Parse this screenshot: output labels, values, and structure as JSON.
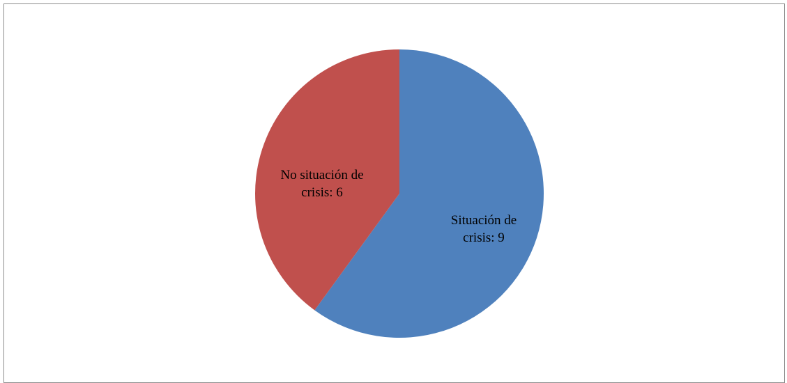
{
  "chart_data": {
    "type": "pie",
    "title": "",
    "slices": [
      {
        "label": "Situación de crisis",
        "value": 9,
        "display_lines": [
          "Situación de",
          "crisis: 9"
        ],
        "color": "#4F81BD"
      },
      {
        "label": "No situación de crisis",
        "value": 6,
        "display_lines": [
          "No situación de",
          "crisis: 6"
        ],
        "color": "#C0504D"
      }
    ],
    "start": "12 o'clock",
    "direction": "clockwise",
    "legend": "none",
    "data_labels": "category and value inside slices"
  }
}
